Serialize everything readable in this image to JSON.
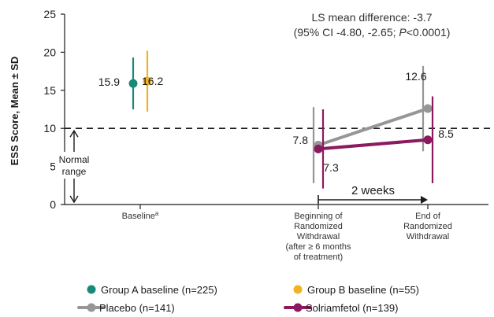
{
  "chart_data": {
    "type": "line",
    "ylabel": "ESS Score, Mean ± SD",
    "ylim": [
      0,
      25
    ],
    "yticks": [
      0,
      5,
      10,
      15,
      20,
      25
    ],
    "categories": [
      {
        "lines": [
          "Baseline"
        ],
        "sup": "a"
      },
      {
        "lines": [
          "Beginning of",
          "Randomized",
          "Withdrawal",
          "(after ≥ 6 months",
          "of treatment)"
        ]
      },
      {
        "lines": [
          "End of",
          "Randomized",
          "Withdrawal"
        ]
      }
    ],
    "reference_line": {
      "y": 10,
      "style": "dashed"
    },
    "normal_range": {
      "lines": [
        "Normal",
        "range"
      ],
      "from": 0,
      "to": 10
    },
    "annotation": {
      "line1": "LS mean difference: -3.7",
      "line2_pre": "(95% CI -4.80, -2.65; ",
      "line2_p": "P",
      "line2_post": "<0.0001)"
    },
    "interval_label": "2 weeks",
    "series": [
      {
        "name": "Group A baseline (n=225)",
        "color": "#1a8a78",
        "marker": "dot",
        "points": [
          {
            "category": 0,
            "mean": 15.9,
            "sd": 3.4,
            "label": "15.9"
          }
        ]
      },
      {
        "name": "Group B baseline (n=55)",
        "color": "#f0b323",
        "marker": "dot",
        "points": [
          {
            "category": 0,
            "mean": 16.2,
            "sd": 4.0,
            "label": "16.2"
          }
        ]
      },
      {
        "name": "Placebo (n=141)",
        "color": "#969696",
        "marker": "line-dot",
        "points": [
          {
            "category": 1,
            "mean": 7.8,
            "sd": 5.0,
            "label": "7.8"
          },
          {
            "category": 2,
            "mean": 12.6,
            "sd": 5.6,
            "label": "12.6"
          }
        ]
      },
      {
        "name": "Solriamfetol (n=139)",
        "color": "#8b1a5e",
        "marker": "line-dot",
        "points": [
          {
            "category": 1,
            "mean": 7.3,
            "sd": 5.2,
            "label": "7.3"
          },
          {
            "category": 2,
            "mean": 8.5,
            "sd": 5.7,
            "label": "8.5"
          }
        ]
      }
    ]
  }
}
